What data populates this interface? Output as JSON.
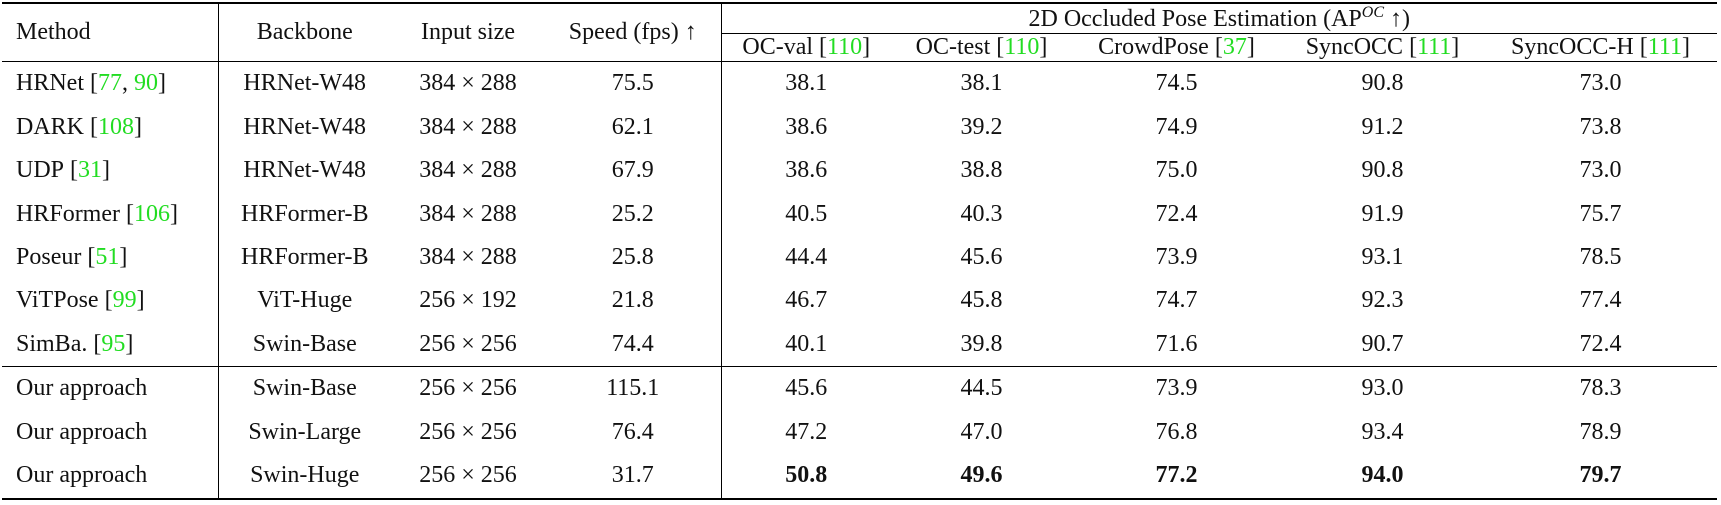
{
  "header": {
    "method": "Method",
    "backbone": "Backbone",
    "input": "Input size",
    "speed": "Speed (fps) ↑",
    "group": {
      "text": "2D Occluded Pose Estimation (AP",
      "sup": "OC",
      "end": " ↑)"
    },
    "metrics": [
      {
        "name": "OC-val",
        "cite": "[110]"
      },
      {
        "name": "OC-test",
        "cite": "[110]"
      },
      {
        "name": "CrowdPose",
        "cite": "[37]"
      },
      {
        "name": "SyncOCC",
        "cite": "[111]"
      },
      {
        "name": "SyncOCC-H",
        "cite": "[111]"
      }
    ]
  },
  "rows": [
    {
      "method": "HRNet",
      "cite": "[77, 90]",
      "backbone": "HRNet-W48",
      "input": "384 × 288",
      "speed": "75.5",
      "metrics": [
        "38.1",
        "38.1",
        "74.5",
        "90.8",
        "73.0"
      ]
    },
    {
      "method": "DARK",
      "cite": "[108]",
      "backbone": "HRNet-W48",
      "input": "384 × 288",
      "speed": "62.1",
      "metrics": [
        "38.6",
        "39.2",
        "74.9",
        "91.2",
        "73.8"
      ]
    },
    {
      "method": "UDP",
      "cite": "[31]",
      "backbone": "HRNet-W48",
      "input": "384 × 288",
      "speed": "67.9",
      "metrics": [
        "38.6",
        "38.8",
        "75.0",
        "90.8",
        "73.0"
      ]
    },
    {
      "method": "HRFormer",
      "cite": "[106]",
      "backbone": "HRFormer-B",
      "input": "384 × 288",
      "speed": "25.2",
      "metrics": [
        "40.5",
        "40.3",
        "72.4",
        "91.9",
        "75.7"
      ]
    },
    {
      "method": "Poseur",
      "cite": "[51]",
      "backbone": "HRFormer-B",
      "input": "384 × 288",
      "speed": "25.8",
      "metrics": [
        "44.4",
        "45.6",
        "73.9",
        "93.1",
        "78.5"
      ]
    },
    {
      "method": "ViTPose",
      "cite": "[99]",
      "backbone": "ViT-Huge",
      "input": "256 × 192",
      "speed": "21.8",
      "metrics": [
        "46.7",
        "45.8",
        "74.7",
        "92.3",
        "77.4"
      ]
    },
    {
      "method": "SimBa.",
      "cite": "[95]",
      "backbone": "Swin-Base",
      "input": "256 × 256",
      "speed": "74.4",
      "metrics": [
        "40.1",
        "39.8",
        "71.6",
        "90.7",
        "72.4"
      ],
      "group_end": true
    },
    {
      "method": "Our approach",
      "backbone": "Swin-Base",
      "input": "256 × 256",
      "speed": "115.1",
      "metrics": [
        "45.6",
        "44.5",
        "73.9",
        "93.0",
        "78.3"
      ]
    },
    {
      "method": "Our approach",
      "backbone": "Swin-Large",
      "input": "256 × 256",
      "speed": "76.4",
      "metrics": [
        "47.2",
        "47.0",
        "76.8",
        "93.4",
        "78.9"
      ]
    },
    {
      "method": "Our approach",
      "backbone": "Swin-Huge",
      "input": "256 × 256",
      "speed": "31.7",
      "metrics": [
        "50.8",
        "49.6",
        "77.2",
        "94.0",
        "79.7"
      ],
      "bold_metrics": true
    }
  ]
}
